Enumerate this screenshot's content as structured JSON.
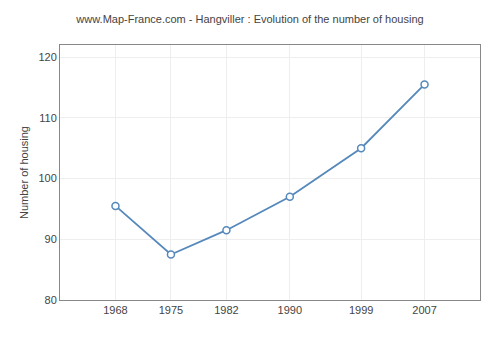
{
  "chart_data": {
    "type": "line",
    "title": "www.Map-France.com - Hangviller : Evolution of the number of housing",
    "ylabel": "Number of housing",
    "x": [
      1968,
      1975,
      1982,
      1990,
      1999,
      2007
    ],
    "values": [
      95.5,
      87.5,
      91.5,
      97,
      105,
      115.5
    ],
    "xlim": [
      1961,
      2014
    ],
    "xticks": [
      1968,
      1975,
      1982,
      1990,
      1999,
      2007
    ],
    "ylim": [
      80,
      122
    ],
    "yticks": [
      80,
      90,
      100,
      110,
      120
    ],
    "color": "#5588bb",
    "marker": "circle",
    "grid": true
  }
}
